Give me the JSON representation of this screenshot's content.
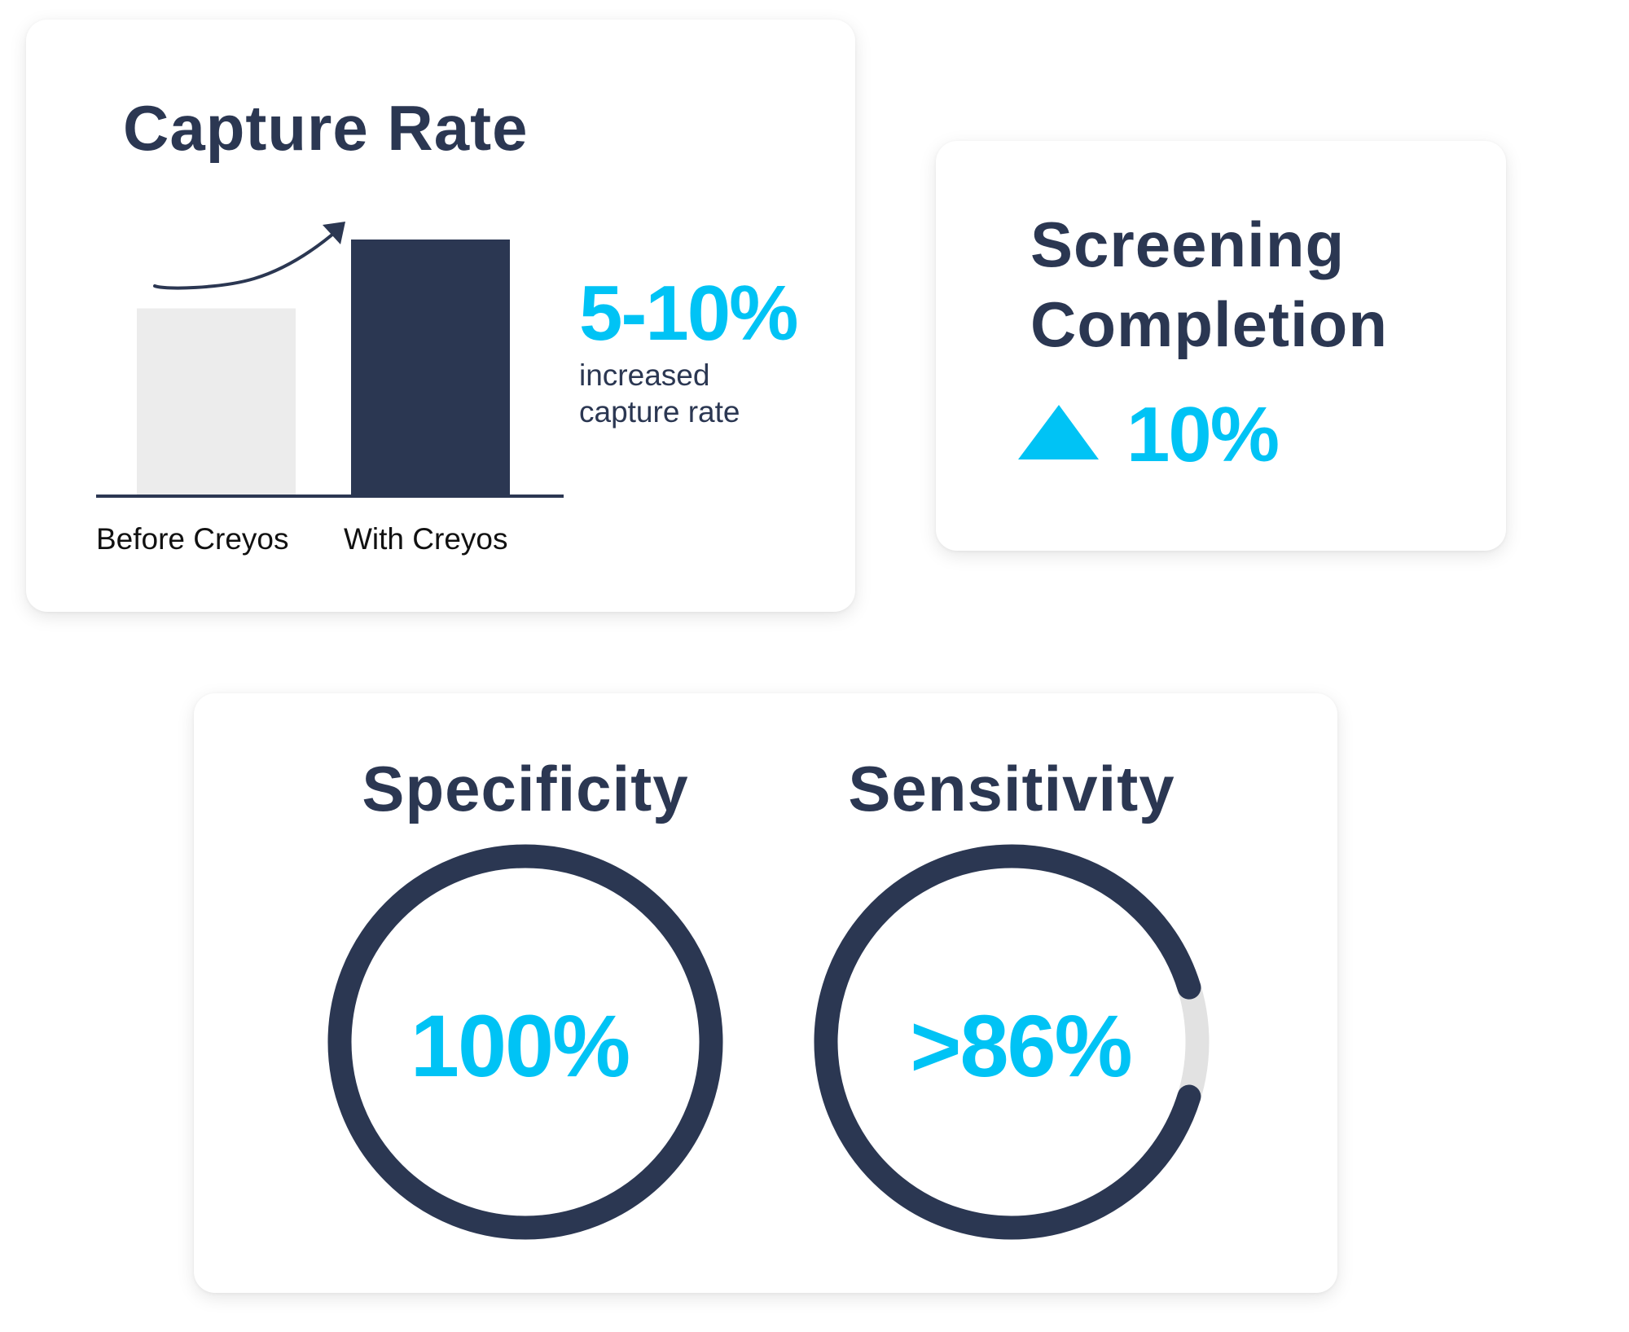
{
  "colors": {
    "navy": "#2b3752",
    "cyan": "#00c3f5",
    "bar_before": "#ececec",
    "track": "#e2e2e2"
  },
  "capture_rate": {
    "title": "Capture Rate",
    "stat": "5-10%",
    "stat_caption_line1": "increased",
    "stat_caption_line2": "capture rate",
    "bars": [
      {
        "label": "Before Creyos",
        "relative_height": 0.73
      },
      {
        "label": "With Creyos",
        "relative_height": 1.0
      }
    ],
    "arrow_icon": "trend-up-arrow"
  },
  "screening": {
    "title_line1": "Screening",
    "title_line2": "Completion",
    "icon": "triangle-up",
    "stat": "10%"
  },
  "metrics": [
    {
      "title": "Specificity",
      "value": "100%",
      "fill_fraction": 1.0
    },
    {
      "title": "Sensitivity",
      "value": ">86%",
      "fill_fraction": 0.905
    }
  ]
}
